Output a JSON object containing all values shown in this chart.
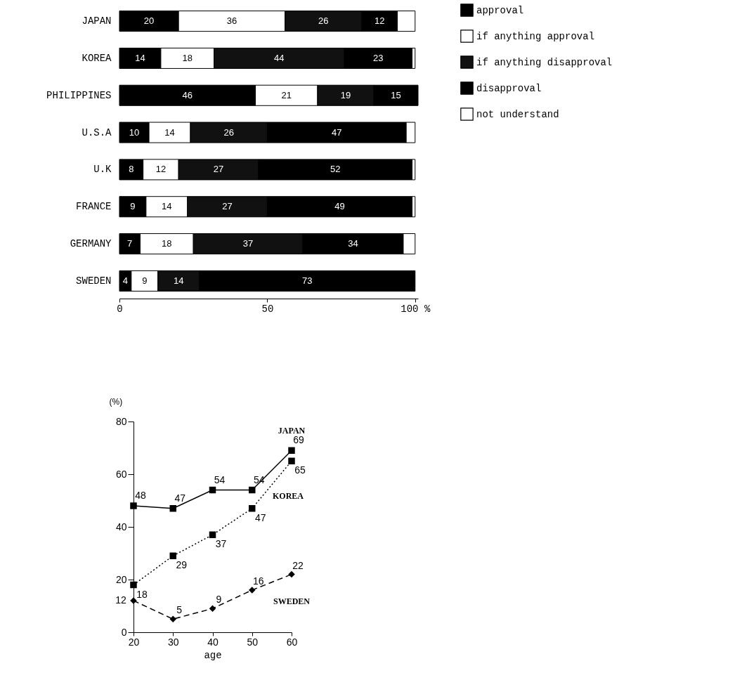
{
  "chart_data": [
    {
      "type": "bar",
      "orientation": "horizontal",
      "stacked": true,
      "categories": [
        "JAPAN",
        "KOREA",
        "PHILIPPINES",
        "U.S.A",
        "U.K",
        "FRANCE",
        "GERMANY",
        "SWEDEN"
      ],
      "series": [
        {
          "name": "approval",
          "color": "#000000",
          "values": [
            20,
            14,
            46,
            10,
            8,
            9,
            7,
            4
          ],
          "value_labels": [
            "20",
            "14",
            "46",
            "10",
            "8",
            "9",
            "7",
            "4"
          ]
        },
        {
          "name": "if anything approval",
          "color": "#ffffff",
          "values": [
            36,
            18,
            21,
            14,
            12,
            14,
            18,
            9
          ],
          "value_labels": [
            "36",
            "18",
            "21",
            "14",
            "12",
            "14",
            "18",
            "9"
          ]
        },
        {
          "name": "if anything disapproval",
          "color": "#111111",
          "values": [
            26,
            44,
            19,
            26,
            27,
            27,
            37,
            14
          ],
          "value_labels": [
            "26",
            "44",
            "19",
            "26",
            "27",
            "27",
            "37",
            "14"
          ]
        },
        {
          "name": "disapproval",
          "color": "#000000",
          "values": [
            12,
            23,
            15,
            47,
            52,
            49,
            34,
            73
          ],
          "value_labels": [
            "12",
            "23",
            "15",
            "47",
            "52",
            "49",
            "34",
            "73"
          ]
        },
        {
          "name": "not understand",
          "color": "#ffffff",
          "values": [
            6,
            1,
            null,
            3,
            1,
            1,
            4,
            null
          ]
        }
      ],
      "xlim": [
        0,
        101
      ],
      "xticks": [
        0,
        50,
        {
          "value": 100,
          "label": "100 %"
        }
      ],
      "legend": "right",
      "grid": false
    },
    {
      "type": "line",
      "x": [
        20,
        30,
        40,
        50,
        60
      ],
      "xlabel": "age",
      "ylabel": "(%)",
      "series": [
        {
          "name": "JAPAN",
          "color": "#000000",
          "values": [
            48,
            47,
            54,
            54,
            69
          ],
          "marker": "square",
          "line_style": "solid"
        },
        {
          "name": "KOREA",
          "color": "#000000",
          "values": [
            18,
            29,
            37,
            47,
            65
          ],
          "marker": "square",
          "line_style": "dotted"
        },
        {
          "name": "SWEDEN",
          "color": "#000000",
          "values": [
            12,
            5,
            9,
            16,
            22
          ],
          "marker": "diamond",
          "line_style": "dashed"
        }
      ],
      "xlim": [
        20,
        60
      ],
      "xticks": [
        20,
        30,
        40,
        50,
        60
      ],
      "ylim": [
        0,
        80
      ],
      "yticks": [
        0,
        20,
        40,
        60,
        80
      ],
      "data_labels": true,
      "legend": false,
      "grid": false
    }
  ]
}
